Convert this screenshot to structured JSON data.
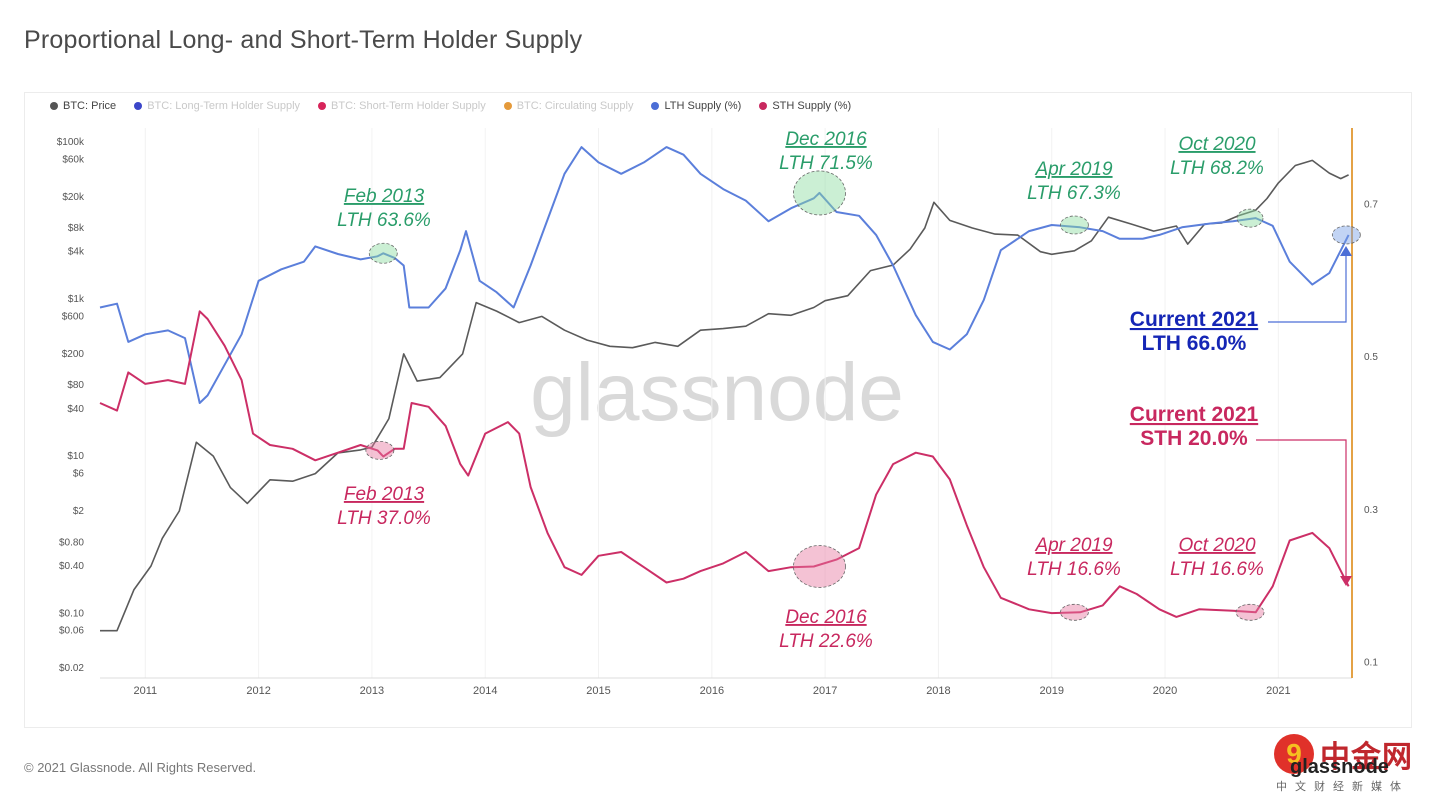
{
  "page": {
    "title": "Proportional Long- and Short-Term Holder Supply",
    "footer": "© 2021 Glassnode. All Rights Reserved.",
    "watermark": "glassnode",
    "brand": {
      "cn": "中金网",
      "sub": "中文财经新媒体",
      "word": "glassnode",
      "logo_glyph": "9"
    }
  },
  "legend": [
    {
      "label": "BTC: Price",
      "color": "#555555",
      "active": true
    },
    {
      "label": "BTC: Long-Term Holder Supply",
      "color": "#3b46c9",
      "active": false
    },
    {
      "label": "BTC: Short-Term Holder Supply",
      "color": "#d7245a",
      "active": false
    },
    {
      "label": "BTC: Circulating Supply",
      "color": "#e59a3a",
      "active": false
    },
    {
      "label": "LTH Supply (%)",
      "color": "#4c6ed6",
      "active": true
    },
    {
      "label": "STH Supply (%)",
      "color": "#c8285f",
      "active": true
    }
  ],
  "colors": {
    "lth": "#5b7fdb",
    "sth": "#cc2f67",
    "price": "#5a5a5a",
    "green": "#2a9d6a",
    "pink": "#c8285f",
    "navy": "#1526b5",
    "orange": "#e4a246",
    "watermark": "#d9d9d9"
  },
  "annotations": [
    {
      "id": "lth-2013",
      "line1": "Feb 2013",
      "line2": "LTH 63.6%",
      "color": "green"
    },
    {
      "id": "lth-2016",
      "line1": "Dec 2016",
      "line2": "LTH 71.5%",
      "color": "green"
    },
    {
      "id": "lth-2019",
      "line1": "Apr 2019",
      "line2": "LTH 67.3%",
      "color": "green"
    },
    {
      "id": "lth-2020",
      "line1": "Oct 2020",
      "line2": "LTH 68.2%",
      "color": "green"
    },
    {
      "id": "sth-2013",
      "line1": "Feb 2013",
      "line2": "LTH 37.0%",
      "color": "pink"
    },
    {
      "id": "sth-2016",
      "line1": "Dec 2016",
      "line2": "LTH 22.6%",
      "color": "pink"
    },
    {
      "id": "sth-2019",
      "line1": "Apr 2019",
      "line2": "LTH 16.6%",
      "color": "pink"
    },
    {
      "id": "sth-2020",
      "line1": "Oct 2020",
      "line2": "LTH 16.6%",
      "color": "pink"
    },
    {
      "id": "cur-lth",
      "line1": "Current 2021",
      "line2": "LTH 66.0%",
      "color": "navy"
    },
    {
      "id": "cur-sth",
      "line1": "Current 2021",
      "line2": "STH 20.0%",
      "color": "pink"
    }
  ],
  "chart_data": {
    "type": "line",
    "title": "Proportional Long- and Short-Term Holder Supply",
    "x_ticks": [
      "2011",
      "2012",
      "2013",
      "2014",
      "2015",
      "2016",
      "2017",
      "2018",
      "2019",
      "2020",
      "2021"
    ],
    "y_left_ticks": [
      "$100k",
      "$60k",
      "$20k",
      "$8k",
      "$4k",
      "$1k",
      "$600",
      "$200",
      "$80",
      "$40",
      "$10",
      "$6",
      "$2",
      "$0.80",
      "$0.40",
      "$0.10",
      "$0.06",
      "$0.02"
    ],
    "y_left_scale": "log",
    "y_right_ticks": [
      "0.7",
      "0.5",
      "0.3",
      "0.1"
    ],
    "y_right_range": [
      0.1,
      0.7
    ],
    "series": [
      {
        "name": "BTC: Price",
        "axis": "left",
        "color": "#5a5a5a",
        "points": [
          [
            2010.6,
            0.06
          ],
          [
            2010.75,
            0.06
          ],
          [
            2010.9,
            0.2
          ],
          [
            2011.05,
            0.4
          ],
          [
            2011.15,
            0.9
          ],
          [
            2011.3,
            2
          ],
          [
            2011.45,
            15
          ],
          [
            2011.6,
            10
          ],
          [
            2011.75,
            4
          ],
          [
            2011.9,
            2.5
          ],
          [
            2012.1,
            5
          ],
          [
            2012.3,
            4.8
          ],
          [
            2012.5,
            6
          ],
          [
            2012.7,
            11
          ],
          [
            2012.9,
            12
          ],
          [
            2013.0,
            13
          ],
          [
            2013.15,
            30
          ],
          [
            2013.28,
            200
          ],
          [
            2013.4,
            90
          ],
          [
            2013.6,
            100
          ],
          [
            2013.8,
            200
          ],
          [
            2013.92,
            900
          ],
          [
            2014.1,
            700
          ],
          [
            2014.3,
            500
          ],
          [
            2014.5,
            600
          ],
          [
            2014.7,
            400
          ],
          [
            2014.9,
            300
          ],
          [
            2015.1,
            250
          ],
          [
            2015.3,
            240
          ],
          [
            2015.5,
            280
          ],
          [
            2015.7,
            250
          ],
          [
            2015.9,
            400
          ],
          [
            2016.1,
            420
          ],
          [
            2016.3,
            450
          ],
          [
            2016.5,
            650
          ],
          [
            2016.7,
            620
          ],
          [
            2016.9,
            780
          ],
          [
            2017.0,
            950
          ],
          [
            2017.2,
            1100
          ],
          [
            2017.4,
            2300
          ],
          [
            2017.6,
            2700
          ],
          [
            2017.75,
            4300
          ],
          [
            2017.88,
            8000
          ],
          [
            2017.96,
            17000
          ],
          [
            2018.1,
            10000
          ],
          [
            2018.3,
            8000
          ],
          [
            2018.5,
            6700
          ],
          [
            2018.7,
            6500
          ],
          [
            2018.9,
            4000
          ],
          [
            2019.0,
            3700
          ],
          [
            2019.2,
            4100
          ],
          [
            2019.35,
            5500
          ],
          [
            2019.5,
            11000
          ],
          [
            2019.7,
            9000
          ],
          [
            2019.9,
            7300
          ],
          [
            2020.1,
            8500
          ],
          [
            2020.2,
            5000
          ],
          [
            2020.35,
            9000
          ],
          [
            2020.5,
            9300
          ],
          [
            2020.65,
            11500
          ],
          [
            2020.8,
            13500
          ],
          [
            2020.9,
            19000
          ],
          [
            2021.0,
            30000
          ],
          [
            2021.15,
            50000
          ],
          [
            2021.3,
            58000
          ],
          [
            2021.45,
            40000
          ],
          [
            2021.55,
            34000
          ],
          [
            2021.62,
            38000
          ]
        ]
      },
      {
        "name": "LTH Supply (%)",
        "axis": "right",
        "color": "#5b7fdb",
        "points": [
          [
            2010.6,
            0.565
          ],
          [
            2010.75,
            0.57
          ],
          [
            2010.85,
            0.52
          ],
          [
            2011.0,
            0.53
          ],
          [
            2011.2,
            0.535
          ],
          [
            2011.35,
            0.525
          ],
          [
            2011.48,
            0.44
          ],
          [
            2011.55,
            0.45
          ],
          [
            2011.7,
            0.49
          ],
          [
            2011.85,
            0.53
          ],
          [
            2012.0,
            0.6
          ],
          [
            2012.2,
            0.615
          ],
          [
            2012.4,
            0.625
          ],
          [
            2012.5,
            0.645
          ],
          [
            2012.7,
            0.635
          ],
          [
            2012.9,
            0.628
          ],
          [
            2013.05,
            0.632
          ],
          [
            2013.1,
            0.636
          ],
          [
            2013.2,
            0.63
          ],
          [
            2013.28,
            0.62
          ],
          [
            2013.33,
            0.565
          ],
          [
            2013.5,
            0.565
          ],
          [
            2013.65,
            0.59
          ],
          [
            2013.78,
            0.64
          ],
          [
            2013.83,
            0.665
          ],
          [
            2013.95,
            0.6
          ],
          [
            2014.1,
            0.585
          ],
          [
            2014.25,
            0.565
          ],
          [
            2014.4,
            0.62
          ],
          [
            2014.5,
            0.66
          ],
          [
            2014.6,
            0.7
          ],
          [
            2014.7,
            0.74
          ],
          [
            2014.85,
            0.775
          ],
          [
            2015.0,
            0.755
          ],
          [
            2015.2,
            0.74
          ],
          [
            2015.4,
            0.755
          ],
          [
            2015.6,
            0.775
          ],
          [
            2015.75,
            0.765
          ],
          [
            2015.9,
            0.74
          ],
          [
            2016.1,
            0.72
          ],
          [
            2016.3,
            0.705
          ],
          [
            2016.5,
            0.678
          ],
          [
            2016.7,
            0.695
          ],
          [
            2016.9,
            0.708
          ],
          [
            2016.95,
            0.715
          ],
          [
            2017.1,
            0.69
          ],
          [
            2017.3,
            0.685
          ],
          [
            2017.45,
            0.66
          ],
          [
            2017.6,
            0.62
          ],
          [
            2017.8,
            0.555
          ],
          [
            2017.95,
            0.52
          ],
          [
            2018.1,
            0.51
          ],
          [
            2018.25,
            0.53
          ],
          [
            2018.4,
            0.575
          ],
          [
            2018.55,
            0.64
          ],
          [
            2018.8,
            0.665
          ],
          [
            2019.0,
            0.673
          ],
          [
            2019.25,
            0.67
          ],
          [
            2019.45,
            0.665
          ],
          [
            2019.6,
            0.655
          ],
          [
            2019.8,
            0.655
          ],
          [
            2019.95,
            0.66
          ],
          [
            2020.15,
            0.67
          ],
          [
            2020.4,
            0.675
          ],
          [
            2020.6,
            0.678
          ],
          [
            2020.8,
            0.682
          ],
          [
            2020.95,
            0.672
          ],
          [
            2021.1,
            0.625
          ],
          [
            2021.3,
            0.595
          ],
          [
            2021.45,
            0.61
          ],
          [
            2021.62,
            0.66
          ]
        ]
      },
      {
        "name": "STH Supply (%)",
        "axis": "right",
        "color": "#cc2f67",
        "points": [
          [
            2010.6,
            0.44
          ],
          [
            2010.75,
            0.43
          ],
          [
            2010.85,
            0.48
          ],
          [
            2011.0,
            0.465
          ],
          [
            2011.2,
            0.47
          ],
          [
            2011.35,
            0.465
          ],
          [
            2011.48,
            0.56
          ],
          [
            2011.55,
            0.55
          ],
          [
            2011.7,
            0.515
          ],
          [
            2011.85,
            0.47
          ],
          [
            2011.95,
            0.4
          ],
          [
            2012.1,
            0.385
          ],
          [
            2012.3,
            0.38
          ],
          [
            2012.5,
            0.365
          ],
          [
            2012.7,
            0.375
          ],
          [
            2012.9,
            0.385
          ],
          [
            2013.05,
            0.378
          ],
          [
            2013.1,
            0.37
          ],
          [
            2013.2,
            0.38
          ],
          [
            2013.28,
            0.38
          ],
          [
            2013.35,
            0.44
          ],
          [
            2013.5,
            0.435
          ],
          [
            2013.65,
            0.41
          ],
          [
            2013.78,
            0.36
          ],
          [
            2013.85,
            0.345
          ],
          [
            2014.0,
            0.4
          ],
          [
            2014.2,
            0.415
          ],
          [
            2014.3,
            0.4
          ],
          [
            2014.4,
            0.33
          ],
          [
            2014.55,
            0.27
          ],
          [
            2014.7,
            0.225
          ],
          [
            2014.85,
            0.215
          ],
          [
            2015.0,
            0.24
          ],
          [
            2015.2,
            0.245
          ],
          [
            2015.4,
            0.225
          ],
          [
            2015.6,
            0.205
          ],
          [
            2015.75,
            0.21
          ],
          [
            2015.9,
            0.22
          ],
          [
            2016.1,
            0.23
          ],
          [
            2016.3,
            0.245
          ],
          [
            2016.5,
            0.22
          ],
          [
            2016.7,
            0.225
          ],
          [
            2016.9,
            0.226
          ],
          [
            2017.1,
            0.235
          ],
          [
            2017.3,
            0.25
          ],
          [
            2017.45,
            0.32
          ],
          [
            2017.6,
            0.36
          ],
          [
            2017.8,
            0.375
          ],
          [
            2017.95,
            0.37
          ],
          [
            2018.1,
            0.34
          ],
          [
            2018.25,
            0.28
          ],
          [
            2018.4,
            0.225
          ],
          [
            2018.55,
            0.185
          ],
          [
            2018.8,
            0.17
          ],
          [
            2019.0,
            0.165
          ],
          [
            2019.25,
            0.166
          ],
          [
            2019.45,
            0.175
          ],
          [
            2019.6,
            0.2
          ],
          [
            2019.75,
            0.19
          ],
          [
            2019.95,
            0.17
          ],
          [
            2020.1,
            0.16
          ],
          [
            2020.3,
            0.17
          ],
          [
            2020.6,
            0.168
          ],
          [
            2020.8,
            0.166
          ],
          [
            2020.95,
            0.2
          ],
          [
            2021.1,
            0.26
          ],
          [
            2021.3,
            0.27
          ],
          [
            2021.45,
            0.25
          ],
          [
            2021.62,
            0.2
          ]
        ]
      }
    ]
  }
}
